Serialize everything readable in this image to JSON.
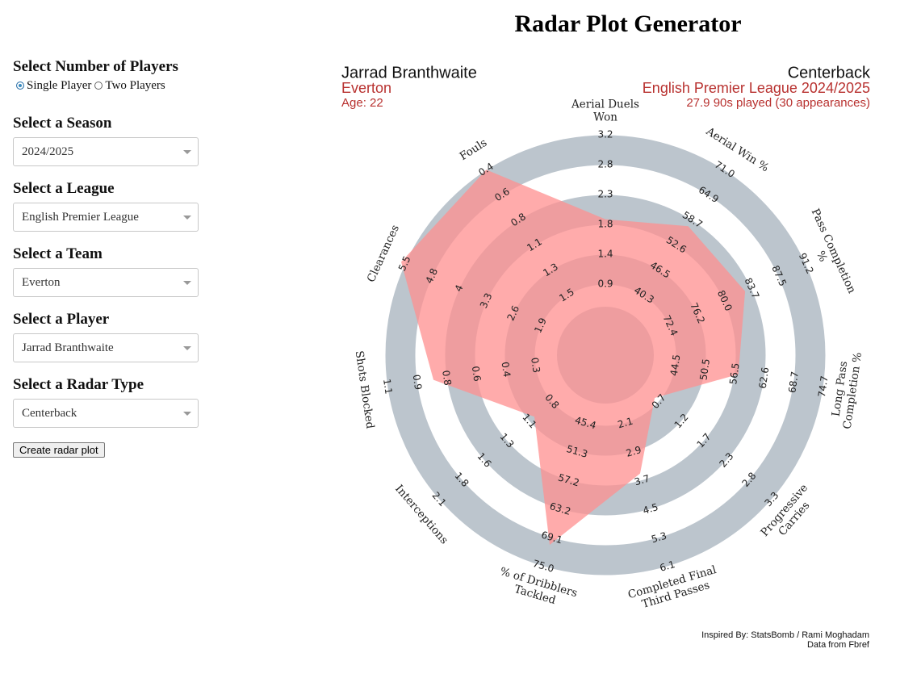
{
  "page": {
    "title": "Radar Plot Generator"
  },
  "sidebar": {
    "players": {
      "label": "Select Number of Players",
      "options": [
        "Single Player",
        "Two Players"
      ],
      "selected": 0
    },
    "fields": [
      {
        "label": "Select a Season",
        "value": "2024/2025"
      },
      {
        "label": "Select a League",
        "value": "English Premier League"
      },
      {
        "label": "Select a Team",
        "value": "Everton"
      },
      {
        "label": "Select a Player",
        "value": "Jarrad Branthwaite"
      },
      {
        "label": "Select a Radar Type",
        "value": "Centerback"
      }
    ],
    "button": "Create radar plot"
  },
  "chart_data": {
    "type": "radar",
    "player": "Jarrad Branthwaite",
    "team": "Everton",
    "age": "Age: 22",
    "position": "Centerback",
    "league": "English Premier League 2024/2025",
    "played": "27.9 90s played (30 appearances)",
    "credits": [
      "Inspired By: StatsBomb / Rami Moghadam",
      "Data from Fbref"
    ],
    "fill": "#ff8f8f",
    "ring_color": "#bcc5cd",
    "accent_color": "#b8312f",
    "params": [
      {
        "label": [
          "Aerial Duels",
          "Won"
        ],
        "ticks": [
          0.9,
          1.4,
          1.8,
          2.3,
          2.8,
          3.2
        ],
        "value": 1.9
      },
      {
        "label": [
          "Aerial Win %"
        ],
        "ticks": [
          40.3,
          46.5,
          52.6,
          58.7,
          64.9,
          {
            "value": 71,
            "label": "71.0"
          }
        ],
        "value": 57.2
      },
      {
        "label": [
          "Pass Completion",
          "%"
        ],
        "ticks": [
          72.4,
          76.2,
          {
            "value": 80,
            "label": "80.0"
          },
          83.7,
          87.5,
          91.2
        ],
        "value": 82.8
      },
      {
        "label": [
          "Long Pass",
          "Completion %"
        ],
        "ticks": [
          44.5,
          50.5,
          56.5,
          62.6,
          68.7,
          74.7
        ],
        "value": 57.3
      },
      {
        "label": [
          "Progressive",
          "Carries"
        ],
        "ticks": [
          0.7,
          1.2,
          1.7,
          2.3,
          2.8,
          3.3
        ],
        "value": 0.6
      },
      {
        "label": [
          "Completed Final",
          "Third Passes"
        ],
        "ticks": [
          2.1,
          2.9,
          3.7,
          4.5,
          5.3,
          6.1
        ],
        "value": 3.5
      },
      {
        "label": [
          "% of Dribblers",
          "Tackled"
        ],
        "ticks": [
          45.4,
          51.3,
          57.2,
          63.2,
          69.1,
          {
            "value": 75,
            "label": "75.0"
          }
        ],
        "value": 70.5
      },
      {
        "label": [
          "Interceptions"
        ],
        "ticks": [
          0.8,
          1.1,
          1.3,
          1.6,
          1.8,
          2.1
        ],
        "value": 1.0
      },
      {
        "label": [
          "Shots Blocked"
        ],
        "ticks": [
          0.3,
          0.4,
          0.6,
          0.8,
          0.9,
          1.1
        ],
        "value": 0.85
      },
      {
        "label": [
          "Clearances"
        ],
        "ticks": [
          1.9,
          2.6,
          3.3,
          4.0,
          4.8,
          5.5
        ],
        "value": 5.6
      },
      {
        "label": [
          "Fouls"
        ],
        "ticks": [
          1.5,
          1.3,
          1.1,
          0.8,
          0.6,
          0.4
        ],
        "value": 0.4
      }
    ]
  }
}
